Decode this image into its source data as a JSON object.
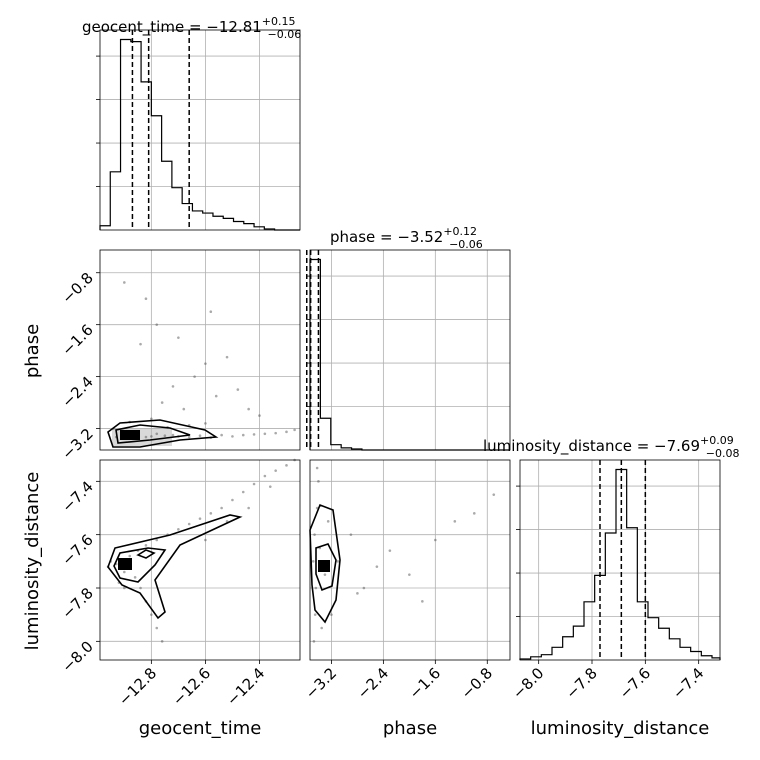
{
  "chart_data": {
    "type": "corner",
    "parameters": [
      "geocent_time",
      "phase",
      "luminosity_distance"
    ],
    "axis_labels": [
      "geocent_time",
      "phase",
      "luminosity_distance"
    ],
    "ranges": {
      "geocent_time": [
        -12.99,
        -12.25
      ],
      "phase": [
        -3.53,
        -0.45
      ],
      "luminosity_distance": [
        -8.07,
        -7.32
      ]
    },
    "ticks": {
      "geocent_time": {
        "values": [
          -12.8,
          -12.6,
          -12.4
        ],
        "labels": [
          "−12.8",
          "−12.6",
          "−12.4"
        ]
      },
      "phase": {
        "values": [
          -3.2,
          -2.4,
          -1.6,
          -0.8
        ],
        "labels": [
          "−3.2",
          "−2.4",
          "−1.6",
          "−0.8"
        ]
      },
      "luminosity_distance": {
        "values": [
          -8.0,
          -7.8,
          -7.6,
          -7.4
        ],
        "labels": [
          "−8.0",
          "−7.8",
          "−7.6",
          "−7.4"
        ]
      }
    },
    "titles": {
      "geocent_time": {
        "lhs": "geocent_time = −12.81",
        "plus": "+0.15",
        "minus": "−0.06"
      },
      "phase": {
        "lhs": "phase = −3.52",
        "plus": "+0.12",
        "minus": "−0.06"
      },
      "luminosity_distance": {
        "lhs": "luminosity_distance = −7.69",
        "plus": "+0.09",
        "minus": "−0.08"
      }
    },
    "quantiles": {
      "geocent_time": [
        -12.87,
        -12.81,
        -12.66
      ],
      "phase": [
        -3.58,
        -3.52,
        -3.4
      ],
      "luminosity_distance": [
        -7.77,
        -7.69,
        -7.6
      ]
    },
    "histograms": {
      "geocent_time": {
        "edges": [
          -12.99,
          -12.952,
          -12.914,
          -12.876,
          -12.838,
          -12.8,
          -12.762,
          -12.724,
          -12.686,
          -12.648,
          -12.61,
          -12.572,
          -12.534,
          -12.496,
          -12.458,
          -12.42,
          -12.382,
          -12.344,
          -12.306,
          -12.268
        ],
        "counts": [
          4,
          55,
          180,
          178,
          140,
          108,
          65,
          40,
          25,
          18,
          16,
          13,
          11,
          8,
          6,
          3,
          1,
          0,
          0
        ]
      },
      "phase": {
        "edges": [
          -3.53,
          -3.37,
          -3.21,
          -3.05,
          -2.89,
          -2.73,
          -2.57,
          -2.41,
          -2.25,
          -2.09,
          -1.93,
          -1.77,
          -1.61,
          -1.45,
          -1.29,
          -1.13,
          -0.97,
          -0.81,
          -0.65,
          -0.45
        ],
        "counts": [
          180,
          30,
          5,
          2,
          1,
          0,
          0,
          0,
          0,
          0,
          0,
          0,
          0,
          0,
          0,
          0,
          0,
          0,
          0
        ]
      },
      "luminosity_distance": {
        "edges": [
          -8.07,
          -8.03,
          -7.99,
          -7.95,
          -7.91,
          -7.87,
          -7.83,
          -7.79,
          -7.75,
          -7.71,
          -7.67,
          -7.63,
          -7.59,
          -7.55,
          -7.51,
          -7.47,
          -7.43,
          -7.39,
          -7.35,
          -7.32
        ],
        "counts": [
          1,
          3,
          5,
          12,
          22,
          32,
          55,
          80,
          120,
          180,
          125,
          55,
          40,
          30,
          20,
          12,
          8,
          4,
          2
        ]
      }
    },
    "scatter_2d": {
      "geocent_time_vs_phase": [
        [
          -12.93,
          -3.33
        ],
        [
          -12.9,
          -3.3
        ],
        [
          -12.88,
          -3.34
        ],
        [
          -12.85,
          -3.31
        ],
        [
          -12.82,
          -3.33
        ],
        [
          -12.8,
          -3.32
        ],
        [
          -12.78,
          -3.28
        ],
        [
          -12.75,
          -3.31
        ],
        [
          -12.72,
          -3.3
        ],
        [
          -12.7,
          -3.32
        ],
        [
          -12.66,
          -3.33
        ],
        [
          -12.62,
          -3.31
        ],
        [
          -12.58,
          -3.34
        ],
        [
          -12.54,
          -3.3
        ],
        [
          -12.5,
          -3.32
        ],
        [
          -12.46,
          -3.3
        ],
        [
          -12.42,
          -3.29
        ],
        [
          -12.38,
          -3.28
        ],
        [
          -12.34,
          -3.27
        ],
        [
          -12.3,
          -3.25
        ],
        [
          -12.27,
          -3.22
        ],
        [
          -12.8,
          -3.05
        ],
        [
          -12.76,
          -2.8
        ],
        [
          -12.72,
          -2.55
        ],
        [
          -12.68,
          -2.9
        ],
        [
          -12.64,
          -2.4
        ],
        [
          -12.6,
          -2.2
        ],
        [
          -12.56,
          -2.7
        ],
        [
          -12.52,
          -2.1
        ],
        [
          -12.48,
          -2.6
        ],
        [
          -12.84,
          -1.9
        ],
        [
          -12.78,
          -1.6
        ],
        [
          -12.9,
          -0.95
        ],
        [
          -12.82,
          -1.2
        ],
        [
          -12.7,
          -1.8
        ],
        [
          -12.58,
          -1.4
        ],
        [
          -12.44,
          -2.9
        ],
        [
          -12.4,
          -3.0
        ],
        [
          -12.94,
          -3.2
        ],
        [
          -12.88,
          -3.1
        ],
        [
          -12.74,
          -3.18
        ],
        [
          -12.66,
          -3.15
        ],
        [
          -12.6,
          -3.12
        ]
      ],
      "geocent_time_vs_luminosity_distance": [
        [
          -12.93,
          -7.71
        ],
        [
          -12.9,
          -7.74
        ],
        [
          -12.88,
          -7.68
        ],
        [
          -12.86,
          -7.76
        ],
        [
          -12.84,
          -7.8
        ],
        [
          -12.82,
          -7.85
        ],
        [
          -12.8,
          -7.9
        ],
        [
          -12.78,
          -7.95
        ],
        [
          -12.76,
          -8.0
        ],
        [
          -12.9,
          -7.8
        ],
        [
          -12.92,
          -7.78
        ],
        [
          -12.85,
          -7.66
        ],
        [
          -12.82,
          -7.64
        ],
        [
          -12.78,
          -7.62
        ],
        [
          -12.74,
          -7.6
        ],
        [
          -12.7,
          -7.58
        ],
        [
          -12.66,
          -7.56
        ],
        [
          -12.62,
          -7.54
        ],
        [
          -12.58,
          -7.52
        ],
        [
          -12.54,
          -7.5
        ],
        [
          -12.5,
          -7.47
        ],
        [
          -12.46,
          -7.44
        ],
        [
          -12.42,
          -7.41
        ],
        [
          -12.38,
          -7.38
        ],
        [
          -12.34,
          -7.36
        ],
        [
          -12.3,
          -7.34
        ],
        [
          -12.27,
          -7.32
        ],
        [
          -12.6,
          -7.62
        ],
        [
          -12.52,
          -7.55
        ],
        [
          -12.44,
          -7.5
        ],
        [
          -12.36,
          -7.42
        ],
        [
          -12.95,
          -7.7
        ],
        [
          -12.96,
          -7.72
        ]
      ],
      "phase_vs_luminosity_distance": [
        [
          -3.48,
          -7.7
        ],
        [
          -3.46,
          -7.6
        ],
        [
          -3.44,
          -7.8
        ],
        [
          -3.42,
          -7.5
        ],
        [
          -3.45,
          -7.9
        ],
        [
          -3.4,
          -7.4
        ],
        [
          -3.38,
          -7.65
        ],
        [
          -3.35,
          -7.95
        ],
        [
          -3.3,
          -7.75
        ],
        [
          -3.25,
          -7.55
        ],
        [
          -3.1,
          -7.7
        ],
        [
          -2.9,
          -7.6
        ],
        [
          -2.7,
          -7.8
        ],
        [
          -2.5,
          -7.72
        ],
        [
          -2.3,
          -7.66
        ],
        [
          -2.0,
          -7.75
        ],
        [
          -1.8,
          -7.85
        ],
        [
          -1.6,
          -7.62
        ],
        [
          -1.3,
          -7.55
        ],
        [
          -1.0,
          -7.52
        ],
        [
          -0.7,
          -7.45
        ],
        [
          -3.47,
          -8.0
        ],
        [
          -3.42,
          -7.35
        ],
        [
          -3.2,
          -7.9
        ],
        [
          -2.8,
          -7.82
        ]
      ]
    }
  }
}
